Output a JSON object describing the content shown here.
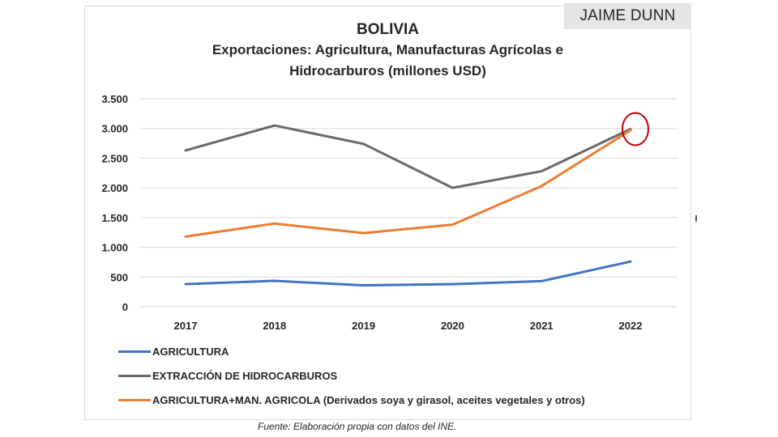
{
  "author_tag": "JAIME DUNN",
  "source_note": "Fuente: Elaboración propia con datos del INE.",
  "chart_data": {
    "type": "line",
    "title": "BOLIVIA",
    "subtitle_line1": "Exportaciones: Agricultura, Manufacturas Agrícolas e",
    "subtitle_line2": "Hidrocarburos (millones USD)",
    "xlabel": "",
    "ylabel": "",
    "categories": [
      "2017",
      "2018",
      "2019",
      "2020",
      "2021",
      "2022"
    ],
    "ylim": [
      0,
      3500
    ],
    "yticks": [
      0,
      500,
      1000,
      1500,
      2000,
      2500,
      3000,
      3500
    ],
    "ytick_labels": [
      "0",
      "500",
      "1.000",
      "1.500",
      "2.000",
      "2.500",
      "3.000",
      "3.500"
    ],
    "grid": true,
    "legend_position": "bottom",
    "series": [
      {
        "name": "AGRICULTURA",
        "color": "#4472c4",
        "values": [
          380,
          435,
          360,
          380,
          430,
          760
        ]
      },
      {
        "name": "EXTRACCIÓN DE HIDROCARBUROS",
        "color": "#696969",
        "values": [
          2630,
          3050,
          2740,
          2000,
          2280,
          2990
        ]
      },
      {
        "name": "AGRICULTURA+MAN. AGRICOLA (Derivados soya y girasol, aceites vegetales y otros)",
        "color": "#ed7d31",
        "values": [
          1180,
          1400,
          1240,
          1380,
          2030,
          2970
        ]
      }
    ],
    "annotations": [
      {
        "type": "circle",
        "category": "2022",
        "value": 2990,
        "color": "#c00000",
        "note": "highlight of 2022 convergence"
      }
    ]
  }
}
